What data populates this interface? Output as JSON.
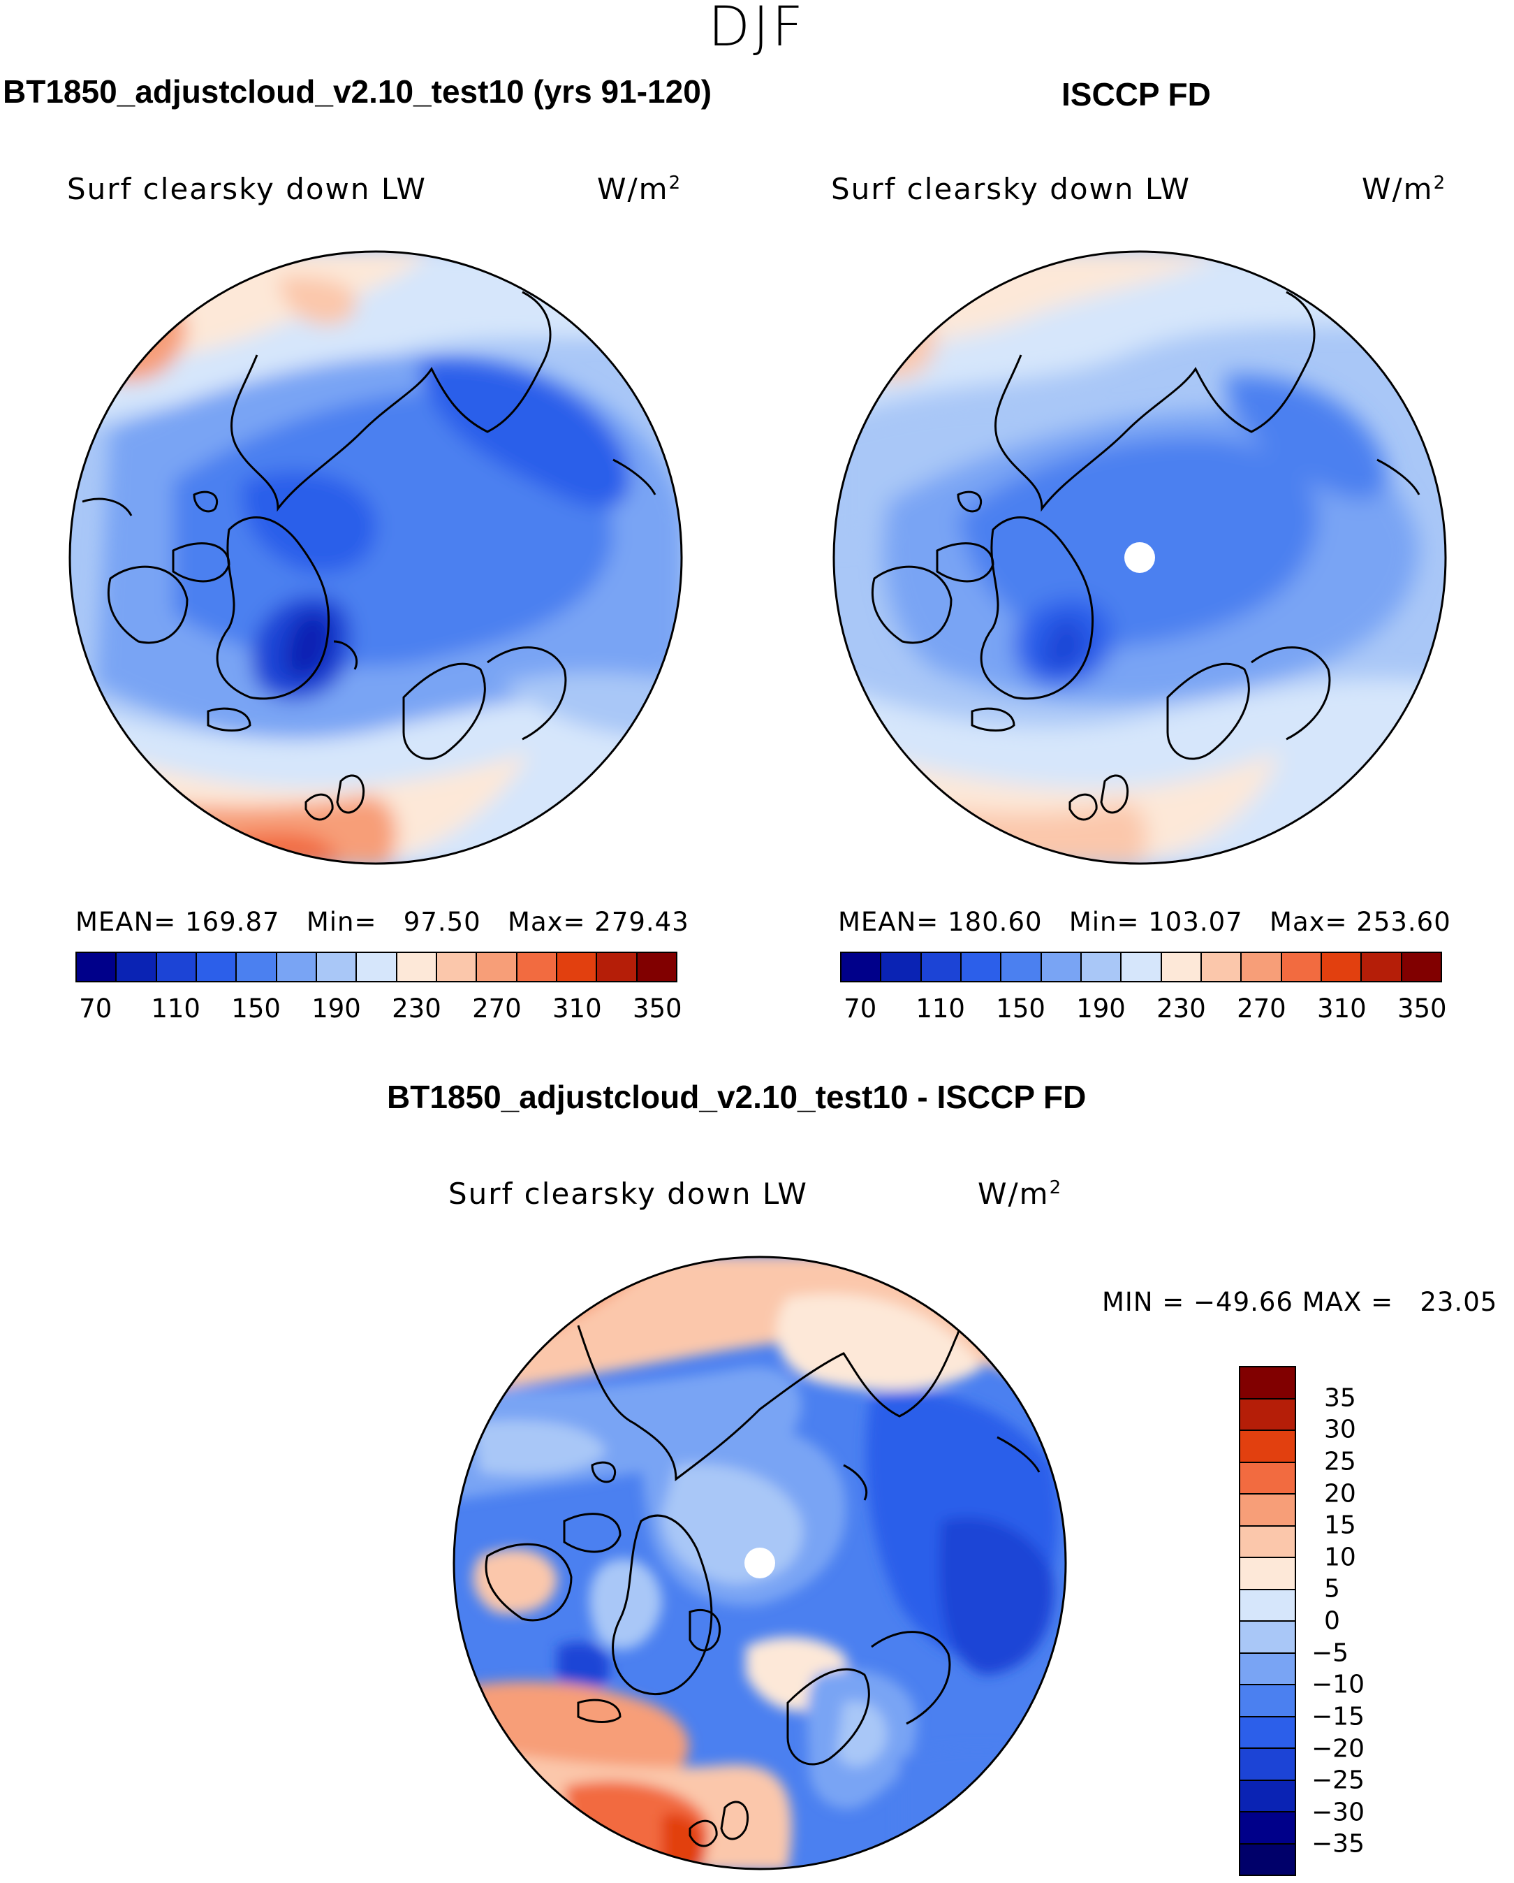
{
  "season": "DJF",
  "panels": {
    "model": {
      "title": "BT1850_adjustcloud_v2.10_test10 (yrs 91-120)",
      "variable": "Surf clearsky down LW",
      "units": "W/m",
      "units_exp": "2",
      "mean_label": "MEAN=",
      "mean": "169.87",
      "min_label": "Min=",
      "min": "97.50",
      "max_label": "Max=",
      "max": "279.43"
    },
    "obs": {
      "title": "ISCCP FD",
      "variable": "Surf clearsky down LW",
      "units": "W/m",
      "units_exp": "2",
      "mean_label": "MEAN=",
      "mean": "180.60",
      "min_label": "Min=",
      "min": "103.07",
      "max_label": "Max=",
      "max": "253.60"
    },
    "diff": {
      "title": "BT1850_adjustcloud_v2.10_test10 - ISCCP FD",
      "variable": "Surf clearsky down LW",
      "units": "W/m",
      "units_exp": "2",
      "minmax_text": "MIN = −49.66 MAX =   23.05"
    }
  },
  "chart_data": [
    {
      "type": "heatmap",
      "projection": "north polar stereographic",
      "title": "BT1850_adjustcloud_v2.10_test10 (yrs 91-120)",
      "variable": "Surf clearsky down LW",
      "units": "W/m2",
      "stats": {
        "mean": 169.87,
        "min": 97.5,
        "max": 279.43
      },
      "colorbar": {
        "orientation": "horizontal",
        "tick_labels": [
          "70",
          "110",
          "150",
          "190",
          "230",
          "270",
          "310",
          "350"
        ],
        "levels": [
          70,
          90,
          110,
          130,
          150,
          170,
          190,
          210,
          230,
          250,
          270,
          290,
          310,
          330,
          350
        ],
        "colors": [
          "#00008a",
          "#0a23b4",
          "#1c44d6",
          "#2c5fea",
          "#4b80f0",
          "#79a4f4",
          "#a9c7f7",
          "#d6e6fb",
          "#fde8d8",
          "#fbc7ab",
          "#f79e78",
          "#f26b40",
          "#e2400f",
          "#b51e08",
          "#810000"
        ]
      }
    },
    {
      "type": "heatmap",
      "projection": "north polar stereographic",
      "title": "ISCCP FD",
      "variable": "Surf clearsky down LW",
      "units": "W/m2",
      "stats": {
        "mean": 180.6,
        "min": 103.07,
        "max": 253.6
      },
      "colorbar": {
        "orientation": "horizontal",
        "tick_labels": [
          "70",
          "110",
          "150",
          "190",
          "230",
          "270",
          "310",
          "350"
        ],
        "levels": [
          70,
          90,
          110,
          130,
          150,
          170,
          190,
          210,
          230,
          250,
          270,
          290,
          310,
          330,
          350
        ],
        "colors": [
          "#00008a",
          "#0a23b4",
          "#1c44d6",
          "#2c5fea",
          "#4b80f0",
          "#79a4f4",
          "#a9c7f7",
          "#d6e6fb",
          "#fde8d8",
          "#fbc7ab",
          "#f79e78",
          "#f26b40",
          "#e2400f",
          "#b51e08",
          "#810000"
        ]
      }
    },
    {
      "type": "heatmap",
      "projection": "north polar stereographic",
      "title": "BT1850_adjustcloud_v2.10_test10 - ISCCP FD",
      "variable": "Surf clearsky down LW",
      "units": "W/m2",
      "stats": {
        "min": -49.66,
        "max": 23.05
      },
      "colorbar": {
        "orientation": "vertical",
        "tick_labels": [
          "35",
          "30",
          "25",
          "20",
          "15",
          "10",
          "5",
          "0",
          "−5",
          "−10",
          "−15",
          "−20",
          "−25",
          "−30",
          "−35"
        ],
        "colors": [
          "#810000",
          "#b51e08",
          "#e2400f",
          "#f26b40",
          "#f79e78",
          "#fbc7ab",
          "#fde8d8",
          "#d6e6fb",
          "#a9c7f7",
          "#79a4f4",
          "#4b80f0",
          "#2c5fea",
          "#1c44d6",
          "#0a23b4",
          "#00008a",
          "#00006a"
        ]
      }
    }
  ]
}
